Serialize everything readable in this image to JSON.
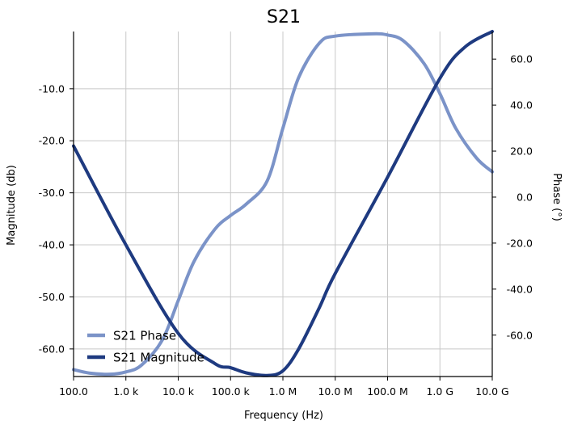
{
  "chart_data": {
    "type": "line",
    "title": "S21",
    "xlabel": "Frequency (Hz)",
    "ylabel_left": "Magnitude (db)",
    "ylabel_right": "Phase (°)",
    "x_scale": "log",
    "xlim": [
      100,
      10000000000
    ],
    "ylim_left": [
      -65.3,
      1.0
    ],
    "ylim_right": [
      -78.0,
      72.0
    ],
    "grid": true,
    "legend_position": "lower-left",
    "x_ticks": [
      {
        "value": 100,
        "label": "100.0"
      },
      {
        "value": 1000,
        "label": "1.0 k"
      },
      {
        "value": 10000,
        "label": "10.0 k"
      },
      {
        "value": 100000,
        "label": "100.0 k"
      },
      {
        "value": 1000000,
        "label": "1.0 M"
      },
      {
        "value": 10000000,
        "label": "10.0 M"
      },
      {
        "value": 100000000,
        "label": "100.0 M"
      },
      {
        "value": 1000000000,
        "label": "1.0 G"
      },
      {
        "value": 10000000000,
        "label": "10.0 G"
      }
    ],
    "y_left_ticks": [
      {
        "value": -10,
        "label": "-10.0"
      },
      {
        "value": -20,
        "label": "-20.0"
      },
      {
        "value": -30,
        "label": "-30.0"
      },
      {
        "value": -40,
        "label": "-40.0"
      },
      {
        "value": -50,
        "label": "-50.0"
      },
      {
        "value": -60,
        "label": "-60.0"
      }
    ],
    "y_right_ticks": [
      {
        "value": 60,
        "label": "60.0"
      },
      {
        "value": 40,
        "label": "40.0"
      },
      {
        "value": 20,
        "label": "20.0"
      },
      {
        "value": 0,
        "label": "0.0"
      },
      {
        "value": -20,
        "label": "-20.0"
      },
      {
        "value": -40,
        "label": "-40.0"
      },
      {
        "value": -60,
        "label": "-60.0"
      }
    ],
    "series": [
      {
        "name": "S21 Phase",
        "axis": "right",
        "color": "#7b93c8",
        "points": [
          [
            100,
            -75
          ],
          [
            200,
            -76.5
          ],
          [
            500,
            -77
          ],
          [
            1000,
            -76
          ],
          [
            2000,
            -73
          ],
          [
            5000,
            -62
          ],
          [
            10000,
            -45
          ],
          [
            20000,
            -28
          ],
          [
            50000,
            -14
          ],
          [
            100000,
            -8
          ],
          [
            200000,
            -3
          ],
          [
            500000,
            7
          ],
          [
            1000000,
            30
          ],
          [
            2000000,
            52
          ],
          [
            5000000,
            67
          ],
          [
            10000000,
            70
          ],
          [
            50000000,
            71
          ],
          [
            100000000,
            70.5
          ],
          [
            200000000,
            68
          ],
          [
            500000000,
            58
          ],
          [
            1000000000,
            45
          ],
          [
            2000000000,
            30
          ],
          [
            5000000000,
            17
          ],
          [
            10000000000,
            11
          ]
        ]
      },
      {
        "name": "S21 Magnitude",
        "axis": "left",
        "color": "#1e3a80",
        "points": [
          [
            100,
            -21
          ],
          [
            1000,
            -40
          ],
          [
            10000,
            -57
          ],
          [
            50000,
            -62.8
          ],
          [
            100000,
            -63.6
          ],
          [
            200000,
            -64.6
          ],
          [
            500000,
            -65.1
          ],
          [
            1000000,
            -64.2
          ],
          [
            2000000,
            -60
          ],
          [
            5000000,
            -52
          ],
          [
            10000000,
            -45.5
          ],
          [
            100000000,
            -27
          ],
          [
            1000000000,
            -8
          ],
          [
            3000000000,
            -2
          ],
          [
            10000000000,
            1
          ]
        ]
      }
    ]
  }
}
